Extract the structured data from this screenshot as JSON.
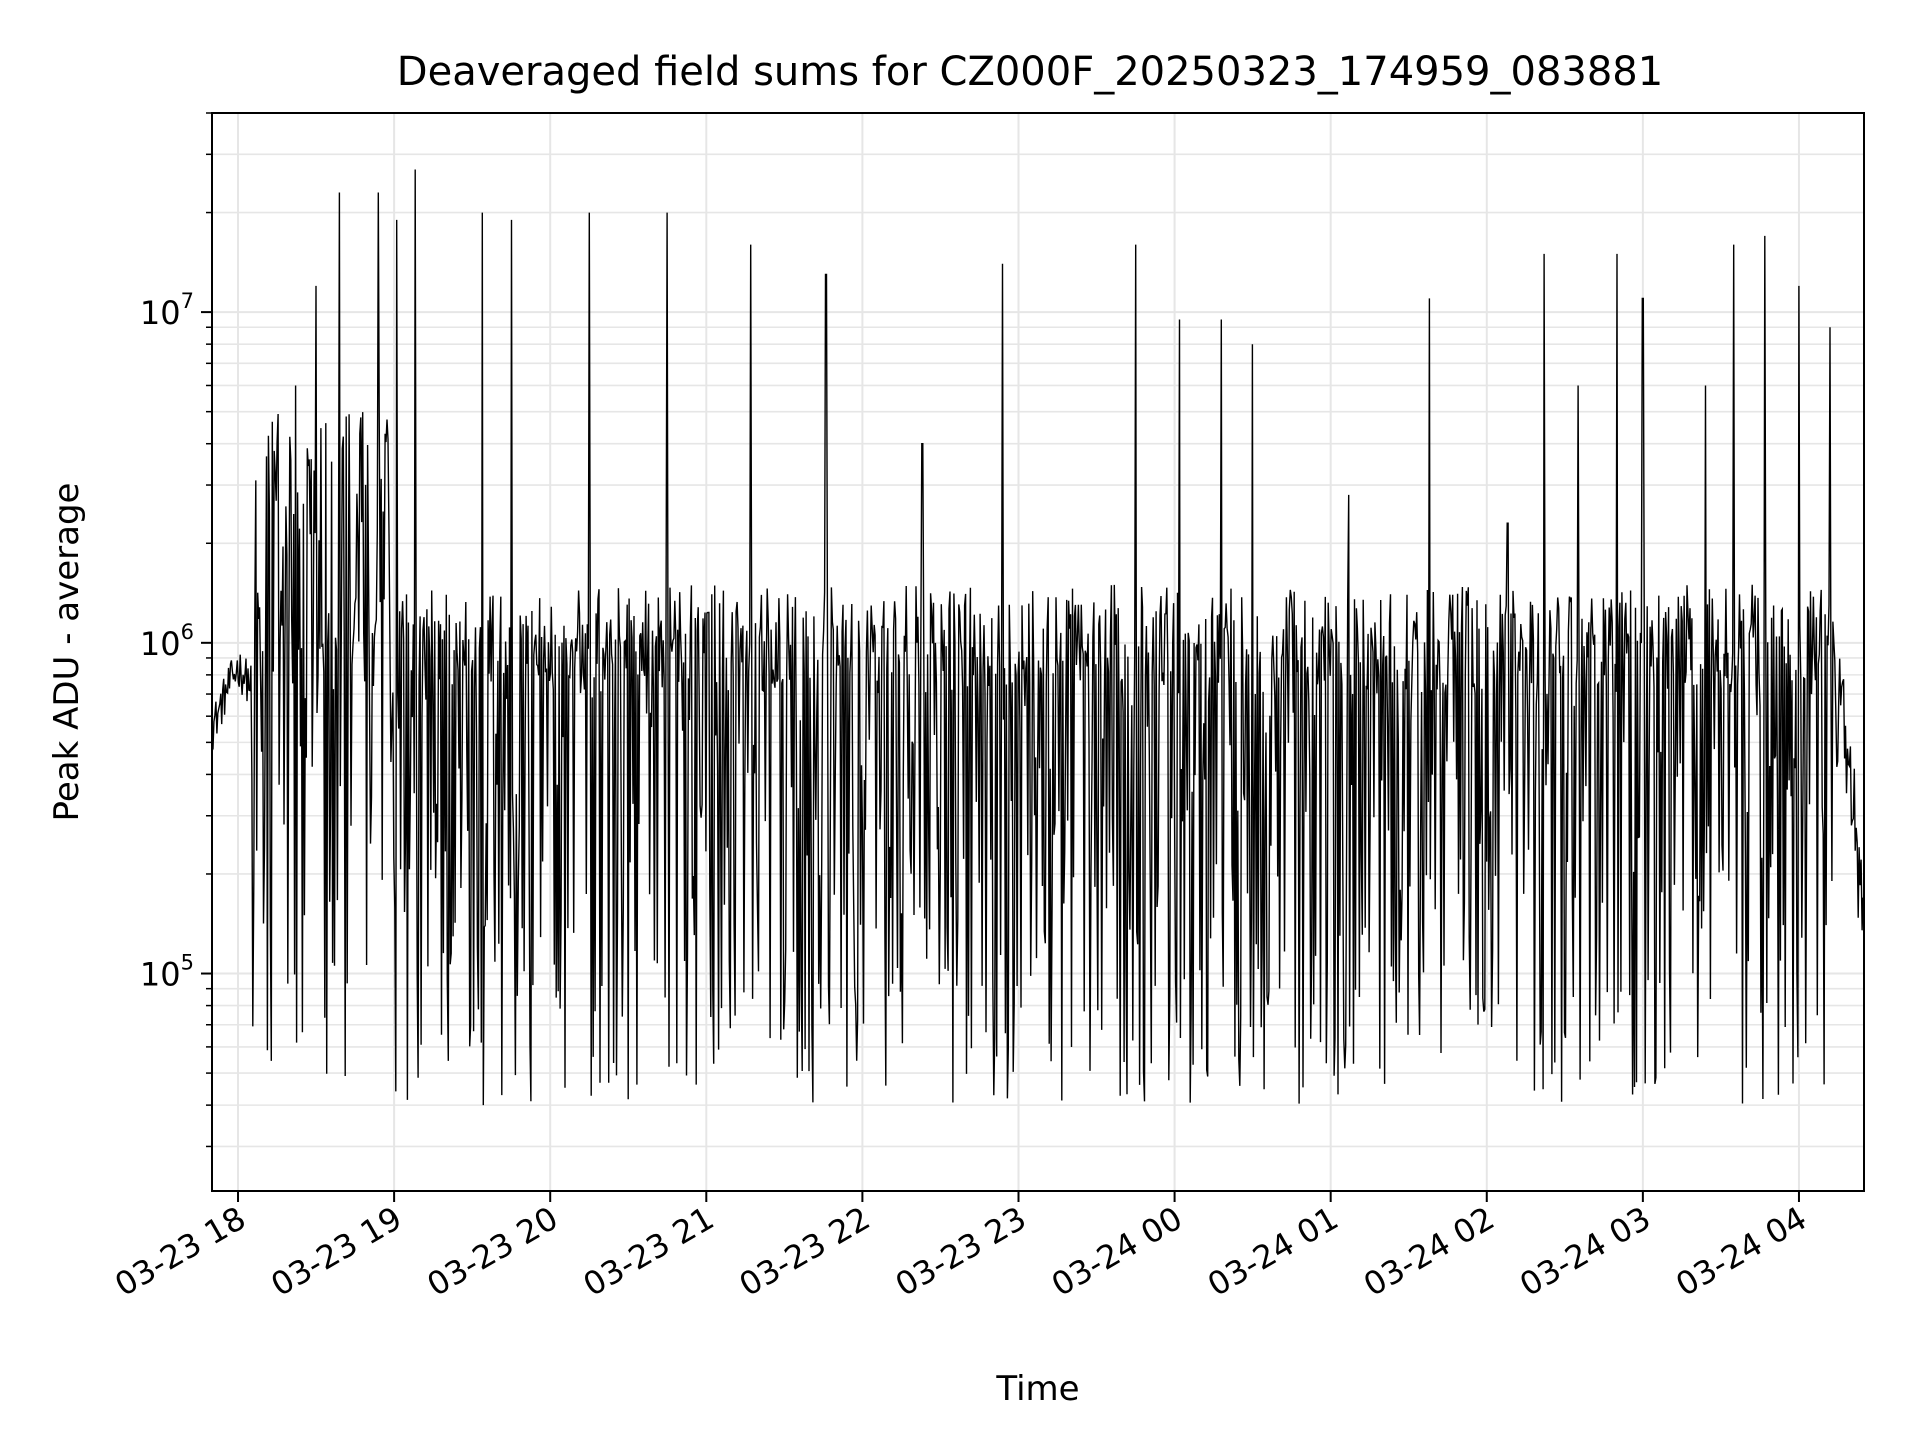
{
  "chart_data": {
    "type": "line",
    "title": "Deaveraged field sums for CZ000F_20250323_174959_083881",
    "xlabel": "Time",
    "ylabel": "Peak ADU - average",
    "y_scale": "log",
    "ylim": [
      22000,
      40000000
    ],
    "xlim": [
      "03-23 17:50",
      "03-24 04:25"
    ],
    "grid": true,
    "line_color": "#000000",
    "x_ticks": [
      "03-23 18",
      "03-23 19",
      "03-23 20",
      "03-23 21",
      "03-23 22",
      "03-23 23",
      "03-24 00",
      "03-24 01",
      "03-24 02",
      "03-24 03",
      "03-24 04"
    ],
    "y_ticks": [
      {
        "value": 100000,
        "base": "10",
        "exp": "5"
      },
      {
        "value": 1000000,
        "base": "10",
        "exp": "6"
      },
      {
        "value": 10000000,
        "base": "10",
        "exp": "7"
      }
    ],
    "series": [
      {
        "x": [
          "03-23 17:50",
          "03-23 17:55",
          "03-23 18:00",
          "03-23 18:05",
          "03-23 18:10",
          "03-23 18:15",
          "03-23 18:20",
          "03-23 18:25",
          "03-23 18:30",
          "03-23 18:35",
          "03-23 18:40",
          "03-23 18:45",
          "03-23 18:50",
          "03-23 18:55",
          "03-23 19:00",
          "03-23 19:10",
          "03-23 19:20",
          "03-23 19:30",
          "03-23 19:45",
          "03-23 20:00",
          "03-23 20:30",
          "03-23 21:00",
          "03-23 21:30",
          "03-23 22:00",
          "03-23 22:30",
          "03-23 23:00",
          "03-23 23:30",
          "03-24 00:00",
          "03-24 00:30",
          "03-24 01:00",
          "03-24 01:30",
          "03-24 02:00",
          "03-24 02:30",
          "03-24 03:00",
          "03-24 03:30",
          "03-24 04:00",
          "03-24 04:10",
          "03-24 04:15",
          "03-24 04:20",
          "03-24 04:25"
        ],
        "y": [
          550000,
          700000,
          850000,
          750000,
          650000,
          1000000,
          2000000,
          2500000,
          2500000,
          2200000,
          2500000,
          2000000,
          1500000,
          1200000,
          1000000,
          900000,
          800000,
          700000,
          650000,
          600000,
          550000,
          500000,
          450000,
          400000,
          350000,
          330000,
          320000,
          320000,
          330000,
          350000,
          400000,
          450000,
          500000,
          550000,
          650000,
          900000,
          1000000,
          700000,
          400000,
          150000
        ],
        "spikes": [
          {
            "x": "03-23 18:22",
            "y": 6000000
          },
          {
            "x": "03-23 18:30",
            "y": 12000000
          },
          {
            "x": "03-23 18:39",
            "y": 23000000
          },
          {
            "x": "03-23 18:54",
            "y": 23000000
          },
          {
            "x": "03-23 19:01",
            "y": 19000000
          },
          {
            "x": "03-23 19:08",
            "y": 27000000
          },
          {
            "x": "03-23 19:34",
            "y": 20000000
          },
          {
            "x": "03-23 19:45",
            "y": 19000000
          },
          {
            "x": "03-23 20:15",
            "y": 20000000
          },
          {
            "x": "03-23 20:45",
            "y": 20000000
          },
          {
            "x": "03-23 21:17",
            "y": 16000000
          },
          {
            "x": "03-23 21:46",
            "y": 13000000
          },
          {
            "x": "03-23 22:23",
            "y": 4000000
          },
          {
            "x": "03-23 22:54",
            "y": 14000000
          },
          {
            "x": "03-23 23:45",
            "y": 16000000
          },
          {
            "x": "03-24 00:02",
            "y": 9500000
          },
          {
            "x": "03-24 00:18",
            "y": 9500000
          },
          {
            "x": "03-24 00:30",
            "y": 8000000
          },
          {
            "x": "03-24 01:07",
            "y": 2800000
          },
          {
            "x": "03-24 01:38",
            "y": 11000000
          },
          {
            "x": "03-24 02:08",
            "y": 2300000
          },
          {
            "x": "03-24 02:22",
            "y": 15000000
          },
          {
            "x": "03-24 02:35",
            "y": 6000000
          },
          {
            "x": "03-24 02:50",
            "y": 15000000
          },
          {
            "x": "03-24 03:00",
            "y": 11000000
          },
          {
            "x": "03-24 03:24",
            "y": 6000000
          },
          {
            "x": "03-24 03:35",
            "y": 16000000
          },
          {
            "x": "03-24 03:47",
            "y": 17000000
          },
          {
            "x": "03-24 04:00",
            "y": 12000000
          },
          {
            "x": "03-24 04:12",
            "y": 9000000
          }
        ],
        "noise_range": [
          40000,
          1500000
        ]
      }
    ]
  }
}
